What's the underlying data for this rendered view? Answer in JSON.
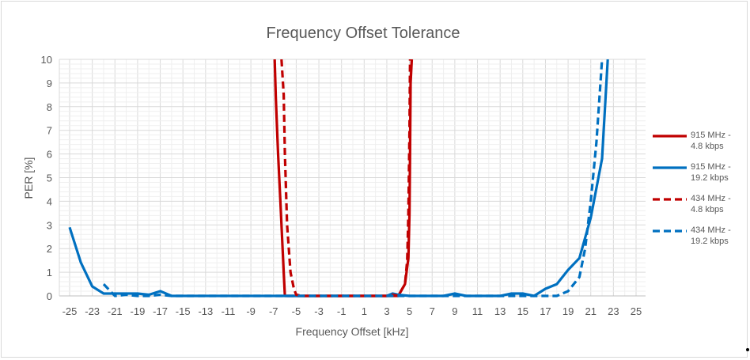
{
  "chart_data": {
    "type": "line",
    "title": "Frequency Offset Tolerance",
    "xlabel": "Frequency Offset [kHz]",
    "ylabel": "PER [%]",
    "xlim": [
      -25,
      25
    ],
    "ylim": [
      0,
      10
    ],
    "x_ticks": [
      -25,
      -23,
      -21,
      -19,
      -17,
      -15,
      -13,
      -11,
      -9,
      -7,
      -5,
      -3,
      -1,
      1,
      3,
      5,
      7,
      9,
      11,
      13,
      15,
      17,
      19,
      21,
      23,
      25
    ],
    "y_ticks": [
      0,
      1,
      2,
      3,
      4,
      5,
      6,
      7,
      8,
      9,
      10
    ],
    "grid": true,
    "legend_position": "right",
    "series": [
      {
        "name": "915 MHz - 4.8 kbps",
        "legend_lines": [
          "915 MHz -",
          "4.8 kbps"
        ],
        "color": "#c00000",
        "dash": "solid",
        "x": [
          -6.9,
          -6.8,
          -6.6,
          -6.4,
          -6.2,
          -6.1,
          -6.0,
          -5.5,
          -5,
          -4,
          -3,
          -2,
          -1,
          0,
          1,
          2,
          3,
          3.5,
          4,
          4.6,
          4.9,
          5.0,
          5.05,
          5.1,
          5.2
        ],
        "y": [
          10,
          8.4,
          6,
          4,
          2,
          1,
          0,
          0,
          0,
          0,
          0,
          0,
          0,
          0,
          0,
          0,
          0,
          0,
          0,
          0.5,
          1.6,
          3.5,
          6,
          9,
          10
        ]
      },
      {
        "name": "915 MHz - 19.2 kbps",
        "legend_lines": [
          "915 MHz -",
          "19.2 kbps"
        ],
        "color": "#0070c0",
        "dash": "solid",
        "x": [
          -25,
          -24,
          -23,
          -22,
          -21,
          -20,
          -19,
          -18,
          -17,
          -16,
          -15,
          -13,
          -11,
          -9,
          -7,
          -5,
          -3,
          -1,
          1,
          3,
          3.5,
          4,
          5,
          7,
          8,
          9,
          10,
          11,
          13,
          14,
          15,
          16,
          17,
          18,
          19,
          20,
          21,
          22,
          22.5
        ],
        "y": [
          2.9,
          1.4,
          0.4,
          0.1,
          0.1,
          0.1,
          0.1,
          0.05,
          0.2,
          0,
          0,
          0,
          0,
          0,
          0,
          0,
          0,
          0,
          0,
          0,
          0.1,
          0.05,
          0,
          0,
          0,
          0.1,
          0,
          0,
          0,
          0.1,
          0.1,
          0,
          0.3,
          0.5,
          1.1,
          1.6,
          3.3,
          5.8,
          10
        ]
      },
      {
        "name": "434 MHz - 4.8 kbps",
        "legend_lines": [
          "434 MHz -",
          "4.8 kbps"
        ],
        "color": "#c00000",
        "dash": "dashed",
        "x": [
          -6.3,
          -6.1,
          -6.0,
          -5.8,
          -5.5,
          -5.2,
          -5.0,
          -4.5,
          -4,
          -3,
          -2,
          -1,
          0,
          1,
          2,
          3,
          3.5,
          4,
          4.6,
          4.8,
          4.9,
          5.0,
          5.05
        ],
        "y": [
          10,
          8.5,
          6,
          3,
          1,
          0.3,
          0.05,
          0,
          0,
          0,
          0,
          0,
          0,
          0,
          0,
          0,
          0.05,
          0,
          0.5,
          1.5,
          3.5,
          7,
          10
        ]
      },
      {
        "name": "434 MHz - 19.2 kbps",
        "legend_lines": [
          "434 MHz -",
          "19.2 kbps"
        ],
        "color": "#0070c0",
        "dash": "dashed",
        "x": [
          -22,
          -21,
          -20,
          -19,
          -18,
          -17,
          -16,
          -15,
          -13,
          -11,
          -9,
          -7,
          -5,
          -3,
          -1,
          1,
          3,
          5,
          7,
          9,
          11,
          13,
          15,
          16,
          17,
          18,
          19,
          20,
          20.5,
          21,
          21.5,
          22
        ],
        "y": [
          0.5,
          0,
          0.05,
          0,
          0,
          0.05,
          0,
          0,
          0,
          0,
          0,
          0,
          0,
          0,
          0,
          0,
          0,
          0,
          0,
          0,
          0,
          0,
          0,
          0,
          0,
          0,
          0.2,
          0.8,
          2,
          4,
          6.5,
          10
        ]
      }
    ]
  }
}
